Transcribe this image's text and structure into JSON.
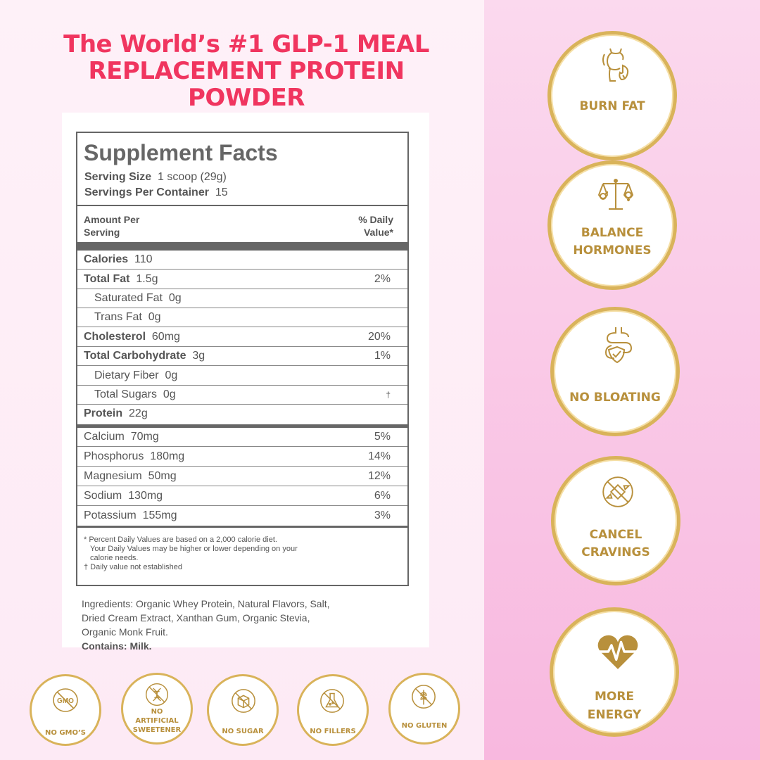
{
  "headline": {
    "line1": "The World’s #1 GLP-1 MEAL",
    "line2": "REPLACEMENT PROTEIN",
    "line3": "POWDER"
  },
  "facts": {
    "title": "Supplement Facts",
    "serving_size_label": "Serving Size",
    "serving_size_value": "1 scoop (29g)",
    "servings_per_label": "Servings Per Container",
    "servings_per_value": "15",
    "amount_header_1": "Amount Per",
    "amount_header_2": "Serving",
    "dv_header_1": "% Daily",
    "dv_header_2": "Value*",
    "rows": [
      {
        "label": "Calories",
        "amount": "110",
        "pct": ""
      },
      {
        "label": "Total Fat",
        "amount": "1.5g",
        "pct": "2%"
      },
      {
        "label": "Saturated Fat",
        "amount": "0g",
        "pct": ""
      },
      {
        "label": "Trans Fat",
        "amount": "0g",
        "pct": ""
      },
      {
        "label": "Cholesterol",
        "amount": "60mg",
        "pct": "20%"
      },
      {
        "label": "Total Carbohydrate",
        "amount": "3g",
        "pct": "1%"
      },
      {
        "label": "Dietary Fiber",
        "amount": "0g",
        "pct": ""
      },
      {
        "label": "Total Sugars",
        "amount": "0g",
        "pct": "†"
      },
      {
        "label": "Protein",
        "amount": "22g",
        "pct": ""
      },
      {
        "label": "Calcium",
        "amount": "70mg",
        "pct": "5%"
      },
      {
        "label": "Phosphorus",
        "amount": "180mg",
        "pct": "14%"
      },
      {
        "label": "Magnesium",
        "amount": "50mg",
        "pct": "12%"
      },
      {
        "label": "Sodium",
        "amount": "130mg",
        "pct": "6%"
      },
      {
        "label": "Potassium",
        "amount": "155mg",
        "pct": "3%"
      }
    ],
    "footnote_1": "* Percent Daily Values are based on a 2,000 calorie diet.",
    "footnote_2": "Your Daily Values may be higher or lower depending on your",
    "footnote_3": "calorie needs.",
    "footnote_4": "† Daily value not established"
  },
  "ingredients": {
    "line1": "Ingredients: Organic Whey Protein, Natural Flavors, Salt,",
    "line2": "Dried Cream Extract, Xanthan Gum, Organic Stevia,",
    "line3_prefix": "Organic Monk Fruit. ",
    "contains": "Contains: Milk."
  },
  "benefits": [
    {
      "line1": "BURN FAT",
      "line2": "",
      "icon": "body-flame-icon"
    },
    {
      "line1": "BALANCE",
      "line2": "HORMONES",
      "icon": "scale-gender-icon"
    },
    {
      "line1": "NO BLOATING",
      "line2": "",
      "icon": "gut-shield-icon"
    },
    {
      "line1": "CANCEL",
      "line2": "CRAVINGS",
      "icon": "no-candy-icon"
    },
    {
      "line1": "MORE",
      "line2": "ENERGY",
      "icon": "heartbeat-icon"
    }
  ],
  "badges": [
    {
      "line1": "NO GMO’S",
      "line2": "",
      "icon_text": "GMO",
      "icon": "no-gmo-icon"
    },
    {
      "line1": "NO",
      "line2": "ARTIFICIAL",
      "line3": "SWEETENER",
      "icon": "no-dna-icon"
    },
    {
      "line1": "NO SUGAR",
      "line2": "",
      "icon": "no-sugar-cube-icon"
    },
    {
      "line1": "NO FILLERS",
      "line2": "",
      "icon": "no-flask-icon"
    },
    {
      "line1": "NO GLUTEN",
      "line2": "",
      "icon": "no-wheat-icon"
    }
  ],
  "colors": {
    "headline": "#f0355f",
    "gold": "#b8903c",
    "gold_ring": "#d9b35a",
    "right_bg": "#f8c4e6"
  }
}
